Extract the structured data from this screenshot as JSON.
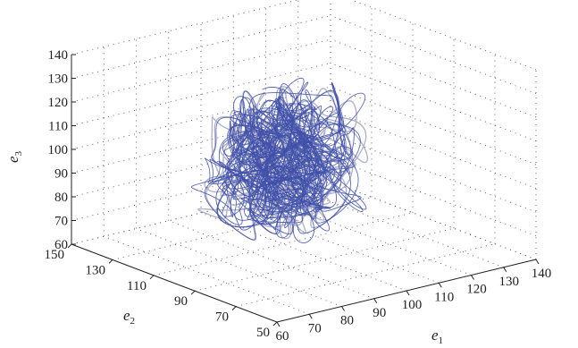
{
  "chart_data": {
    "type": "line3d",
    "title": "",
    "axes": {
      "x": {
        "label_base": "e",
        "label_sub": "1",
        "range": [
          60,
          140
        ],
        "ticks": [
          60,
          70,
          80,
          90,
          100,
          110,
          120,
          130,
          140
        ]
      },
      "y": {
        "label_base": "e",
        "label_sub": "2",
        "range": [
          50,
          150
        ],
        "ticks": [
          50,
          70,
          90,
          110,
          130,
          150
        ]
      },
      "z": {
        "label_base": "e",
        "label_sub": "3",
        "range": [
          60,
          140
        ],
        "ticks": [
          60,
          70,
          80,
          90,
          100,
          110,
          120,
          130,
          140
        ]
      }
    },
    "grid": true,
    "series": [
      {
        "kind": "chaotic-attractor-trajectory",
        "color": "#3a4aa8",
        "outline_color": "#a9acc4",
        "center": [
          92,
          102,
          95
        ],
        "extent": {
          "x": [
            72,
            118
          ],
          "y": [
            80,
            125
          ],
          "z": [
            62,
            138
          ]
        }
      }
    ]
  }
}
